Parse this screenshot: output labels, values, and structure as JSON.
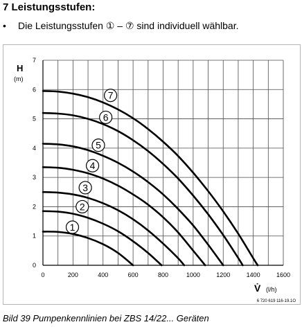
{
  "heading": "7 Leistungsstufen:",
  "bullet": {
    "symbol": "•",
    "text": "Die Leistungsstufen ① – ⑦ sind individuell wählbar."
  },
  "caption": "Bild 39   Pumpenkennlinien bei ZBS 14/22... Geräten",
  "chart_data": {
    "type": "line",
    "title": "",
    "ylabel": "H",
    "yunit": "(m)",
    "xlabel": "V̇",
    "xunit": "(l/h)",
    "figure_code": "6 720 619 116-19.1O",
    "xlim": [
      0,
      1600
    ],
    "ylim": [
      0,
      7
    ],
    "x_ticks": [
      "0",
      "200",
      "400",
      "600",
      "800",
      "1000",
      "1200",
      "1400",
      "1600"
    ],
    "y_ticks": [
      "0",
      "1",
      "2",
      "3",
      "4",
      "5",
      "6",
      "7"
    ],
    "grid": true,
    "series": [
      {
        "name": "1",
        "label_at": [
          196,
          1.3
        ],
        "points": [
          [
            0,
            1.15
          ],
          [
            100,
            1.14
          ],
          [
            200,
            1.07
          ],
          [
            300,
            0.93
          ],
          [
            400,
            0.72
          ],
          [
            500,
            0.42
          ],
          [
            600,
            0.0
          ]
        ]
      },
      {
        "name": "2",
        "label_at": [
          262,
          2.0
        ],
        "points": [
          [
            0,
            1.85
          ],
          [
            100,
            1.83
          ],
          [
            200,
            1.76
          ],
          [
            300,
            1.62
          ],
          [
            400,
            1.42
          ],
          [
            500,
            1.16
          ],
          [
            600,
            0.82
          ],
          [
            700,
            0.42
          ],
          [
            790,
            0.0
          ]
        ]
      },
      {
        "name": "3",
        "label_at": [
          282,
          2.65
        ],
        "points": [
          [
            0,
            2.5
          ],
          [
            100,
            2.48
          ],
          [
            200,
            2.42
          ],
          [
            300,
            2.3
          ],
          [
            400,
            2.12
          ],
          [
            500,
            1.88
          ],
          [
            600,
            1.57
          ],
          [
            700,
            1.19
          ],
          [
            800,
            0.74
          ],
          [
            900,
            0.24
          ],
          [
            940,
            0.0
          ]
        ]
      },
      {
        "name": "4",
        "label_at": [
          330,
          3.4
        ],
        "points": [
          [
            0,
            3.35
          ],
          [
            100,
            3.33
          ],
          [
            200,
            3.26
          ],
          [
            300,
            3.14
          ],
          [
            400,
            2.96
          ],
          [
            500,
            2.72
          ],
          [
            600,
            2.42
          ],
          [
            700,
            2.07
          ],
          [
            800,
            1.64
          ],
          [
            900,
            1.12
          ],
          [
            1000,
            0.5
          ],
          [
            1080,
            0.0
          ]
        ]
      },
      {
        "name": "5",
        "label_at": [
          369,
          4.1
        ],
        "points": [
          [
            0,
            4.15
          ],
          [
            100,
            4.13
          ],
          [
            200,
            4.06
          ],
          [
            300,
            3.93
          ],
          [
            400,
            3.74
          ],
          [
            500,
            3.5
          ],
          [
            600,
            3.2
          ],
          [
            700,
            2.84
          ],
          [
            800,
            2.42
          ],
          [
            900,
            1.92
          ],
          [
            1000,
            1.36
          ],
          [
            1100,
            0.7
          ],
          [
            1200,
            0.0
          ]
        ]
      },
      {
        "name": "6",
        "label_at": [
          418,
          5.05
        ],
        "points": [
          [
            0,
            5.2
          ],
          [
            100,
            5.18
          ],
          [
            200,
            5.12
          ],
          [
            300,
            5.0
          ],
          [
            400,
            4.82
          ],
          [
            500,
            4.58
          ],
          [
            600,
            4.27
          ],
          [
            700,
            3.9
          ],
          [
            800,
            3.46
          ],
          [
            900,
            2.96
          ],
          [
            1000,
            2.38
          ],
          [
            1100,
            1.74
          ],
          [
            1200,
            1.03
          ],
          [
            1300,
            0.25
          ],
          [
            1330,
            0.0
          ]
        ]
      },
      {
        "name": "7",
        "label_at": [
          450,
          5.8
        ],
        "points": [
          [
            0,
            5.95
          ],
          [
            100,
            5.93
          ],
          [
            200,
            5.86
          ],
          [
            300,
            5.74
          ],
          [
            400,
            5.56
          ],
          [
            500,
            5.32
          ],
          [
            600,
            5.02
          ],
          [
            700,
            4.65
          ],
          [
            800,
            4.22
          ],
          [
            900,
            3.73
          ],
          [
            1000,
            3.16
          ],
          [
            1100,
            2.53
          ],
          [
            1200,
            1.84
          ],
          [
            1300,
            1.08
          ],
          [
            1400,
            0.24
          ],
          [
            1430,
            0.0
          ]
        ]
      }
    ]
  }
}
